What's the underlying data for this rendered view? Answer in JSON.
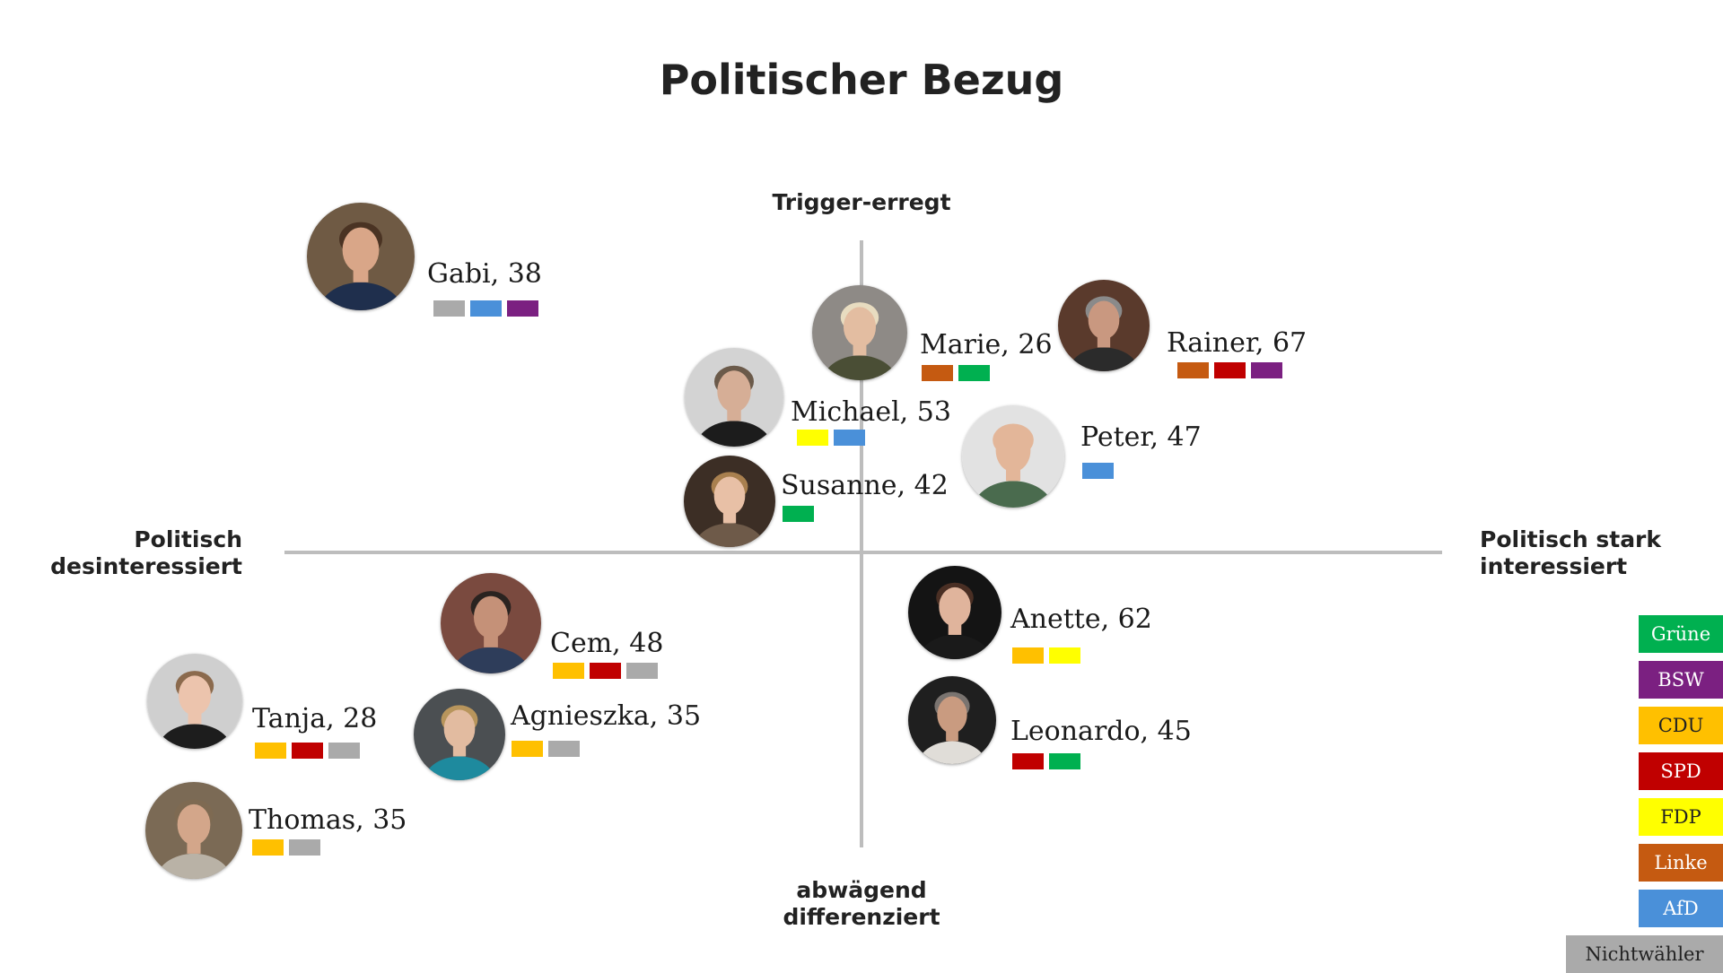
{
  "title": "Politischer Bezug",
  "axes": {
    "top": "Trigger-erregt",
    "bottom_line1": "abwägend",
    "bottom_line2": "differenziert",
    "left_line1": "Politisch",
    "left_line2": "desinteressiert",
    "right_line1": "Politisch stark",
    "right_line2": "interessiert"
  },
  "parties": {
    "gruene": {
      "label": "Grüne",
      "color": "#00b050",
      "text_color": "#ffffff"
    },
    "bsw": {
      "label": "BSW",
      "color": "#7b2081",
      "text_color": "#ffffff"
    },
    "cdu": {
      "label": "CDU",
      "color": "#ffc000",
      "text_color": "#222222"
    },
    "spd": {
      "label": "SPD",
      "color": "#c00000",
      "text_color": "#ffffff"
    },
    "fdp": {
      "label": "FDP",
      "color": "#ffff00",
      "text_color": "#222222"
    },
    "linke": {
      "label": "Linke",
      "color": "#c55a11",
      "text_color": "#ffffff"
    },
    "afd": {
      "label": "AfD",
      "color": "#4a90d9",
      "text_color": "#ffffff"
    },
    "nichtwaehler": {
      "label": "Nichtwähler",
      "color": "#aaaaaa",
      "text_color": "#222222"
    }
  },
  "legend_order": [
    "gruene",
    "bsw",
    "cdu",
    "spd",
    "fdp",
    "linke",
    "afd",
    "nichtwaehler"
  ],
  "personas": [
    {
      "id": "gabi",
      "label": "Gabi, 38",
      "parties": [
        "nichtwaehler",
        "afd",
        "bsw"
      ],
      "avatar": {
        "bg": "#6f5a44",
        "skin": "#d9a688",
        "hair": "#4a3323",
        "shirt": "#1f2f4d"
      }
    },
    {
      "id": "marie",
      "label": "Marie, 26",
      "parties": [
        "linke",
        "gruene"
      ],
      "avatar": {
        "bg": "#8e8a86",
        "skin": "#e3bda1",
        "hair": "#e8dcc0",
        "shirt": "#4a4e35"
      }
    },
    {
      "id": "rainer",
      "label": "Rainer, 67",
      "parties": [
        "linke",
        "spd",
        "bsw"
      ],
      "avatar": {
        "bg": "#5a3a2c",
        "skin": "#c99880",
        "hair": "#8a8a8a",
        "shirt": "#2b2b2b"
      }
    },
    {
      "id": "michael",
      "label": "Michael, 53",
      "parties": [
        "fdp",
        "afd"
      ],
      "avatar": {
        "bg": "#d3d3d3",
        "skin": "#d6ae96",
        "hair": "#6b5a4a",
        "shirt": "#1c1c1c"
      }
    },
    {
      "id": "peter",
      "label": "Peter, 47",
      "parties": [
        "afd"
      ],
      "avatar": {
        "bg": "#e2e2e2",
        "skin": "#e3b699",
        "hair": "#e3b699",
        "shirt": "#4a6b4e"
      }
    },
    {
      "id": "susanne",
      "label": "Susanne, 42",
      "parties": [
        "gruene"
      ],
      "avatar": {
        "bg": "#3c2e25",
        "skin": "#e8c0a6",
        "hair": "#a9804f",
        "shirt": "#6e5a49"
      }
    },
    {
      "id": "cem",
      "label": "Cem, 48",
      "parties": [
        "cdu",
        "spd",
        "nichtwaehler"
      ],
      "avatar": {
        "bg": "#7a4a3f",
        "skin": "#c59178",
        "hair": "#2a2320",
        "shirt": "#2e3d5a"
      }
    },
    {
      "id": "anette",
      "label": "Anette, 62",
      "parties": [
        "cdu",
        "fdp"
      ],
      "avatar": {
        "bg": "#141414",
        "skin": "#e0b49c",
        "hair": "#4a2f24",
        "shirt": "#1a1a1a"
      }
    },
    {
      "id": "tanja",
      "label": "Tanja, 28",
      "parties": [
        "cdu",
        "spd",
        "nichtwaehler"
      ],
      "avatar": {
        "bg": "#cfcfcf",
        "skin": "#ecc4ad",
        "hair": "#8b6a4d",
        "shirt": "#1d1d1d"
      }
    },
    {
      "id": "agnieszka",
      "label": "Agnieszka, 35",
      "parties": [
        "cdu",
        "nichtwaehler"
      ],
      "avatar": {
        "bg": "#4b4f52",
        "skin": "#e2bba0",
        "hair": "#b8955c",
        "shirt": "#1e8a9e"
      }
    },
    {
      "id": "leonardo",
      "label": "Leonardo, 45",
      "parties": [
        "spd",
        "gruene"
      ],
      "avatar": {
        "bg": "#1f1f1f",
        "skin": "#c99b80",
        "hair": "#7a7470",
        "shirt": "#e0ddd8"
      }
    },
    {
      "id": "thomas",
      "label": "Thomas, 35",
      "parties": [
        "cdu",
        "nichtwaehler"
      ],
      "avatar": {
        "bg": "#7b6a55",
        "skin": "#d3a68a",
        "hair": "#7e6a52",
        "shirt": "#b9b2a6"
      }
    }
  ]
}
